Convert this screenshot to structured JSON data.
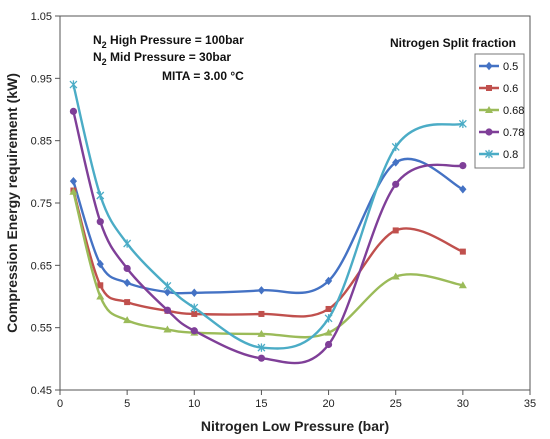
{
  "chart_data": {
    "type": "line",
    "title": "",
    "xlabel": "Nitrogen Low Pressure (bar)",
    "ylabel": "Compression Energy requirement (kW)",
    "xlim": [
      0,
      35
    ],
    "ylim": [
      0.45,
      1.05
    ],
    "xticks": [
      0,
      5,
      10,
      15,
      20,
      25,
      30,
      35
    ],
    "yticks": [
      0.45,
      0.55,
      0.65,
      0.75,
      0.85,
      0.95,
      1.05
    ],
    "xtick_labels": [
      "0",
      "5",
      "10",
      "15",
      "20",
      "25",
      "30",
      "35"
    ],
    "ytick_labels": [
      "0.45",
      "0.55",
      "0.65",
      "0.75",
      "0.85",
      "0.95",
      "1.05"
    ],
    "grid": false,
    "legend": {
      "title": "Nitrogen Split fraction",
      "placement": "right"
    },
    "annotations": [
      {
        "prefix": "N",
        "sub": "2",
        "text": " High Pressure = 100bar"
      },
      {
        "prefix": "N",
        "sub": "2",
        "text": " Mid Pressure  = 30bar"
      },
      {
        "prefix": "",
        "sub": "",
        "text": "MITA = 3.00 °C"
      }
    ],
    "x": [
      1,
      3,
      5,
      8,
      10,
      15,
      20,
      25,
      30
    ],
    "series": [
      {
        "name": "0.5",
        "color": "#4472C4",
        "marker": "diamond",
        "values": [
          0.785,
          0.652,
          0.622,
          0.607,
          0.606,
          0.61,
          0.625,
          0.815,
          0.772
        ]
      },
      {
        "name": "0.6",
        "color": "#C0504D",
        "marker": "square",
        "values": [
          0.77,
          0.618,
          0.591,
          0.577,
          0.572,
          0.572,
          0.58,
          0.706,
          0.672
        ]
      },
      {
        "name": "0.68",
        "color": "#9BBB59",
        "marker": "triangle",
        "values": [
          0.768,
          0.6,
          0.562,
          0.547,
          0.542,
          0.54,
          0.542,
          0.632,
          0.618
        ]
      },
      {
        "name": "0.78",
        "color": "#7F3F98",
        "marker": "circle",
        "values": [
          0.897,
          0.72,
          0.645,
          0.578,
          0.545,
          0.501,
          0.523,
          0.78,
          0.81
        ]
      },
      {
        "name": "0.8",
        "color": "#4BACC6",
        "marker": "star",
        "values": [
          0.94,
          0.762,
          0.685,
          0.617,
          0.582,
          0.518,
          0.565,
          0.84,
          0.877
        ]
      }
    ]
  }
}
